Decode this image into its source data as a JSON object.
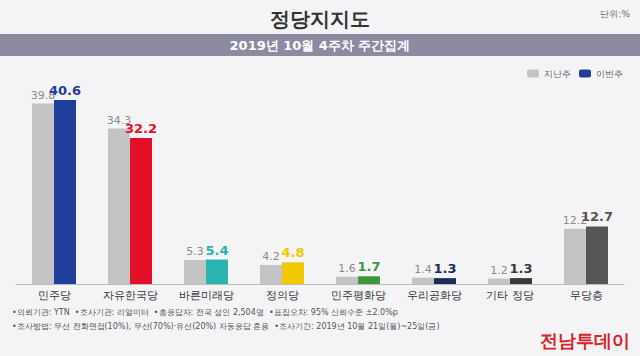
{
  "chart_data": {
    "type": "bar",
    "title": "정당지지도",
    "subtitle": "2019년 10월 4주차 주간집계",
    "unit": "단위:%",
    "categories": [
      "민주당",
      "자유한국당",
      "바른미래당",
      "정의당",
      "민주평화당",
      "우리공화당",
      "기타 정당",
      "무당층"
    ],
    "series": [
      {
        "name": "지난주",
        "color": "#c4c4c4",
        "values": [
          39.8,
          34.3,
          5.3,
          4.2,
          1.6,
          1.4,
          1.2,
          12.2
        ]
      },
      {
        "name": "이번주",
        "colors": [
          "#1f3f9a",
          "#e3102a",
          "#2bb3b1",
          "#f2c900",
          "#3a9a3a",
          "#1c2d5a",
          "#3a3a3a",
          "#555555"
        ],
        "values": [
          40.6,
          32.2,
          5.4,
          4.8,
          1.7,
          1.3,
          1.3,
          12.7
        ]
      }
    ],
    "ylim": [
      0,
      45
    ],
    "grid": false,
    "tick_labels": "x",
    "data_labels": true,
    "legend": "top-right",
    "footnotes": [
      "•의뢰기관: YTN  •조사기관: 리얼미터  •총응답자: 전국 성인 2,504명  •표집오차: 95% 신뢰수준 ±2.0%p",
      "•조사방법: 무선 전화면접(10%), 무선(70%)·유선(20%) 자동응답 혼용  •조사기간: 2019년 10월 21일(월)~25일(금)"
    ],
    "watermark": "전남투데이"
  }
}
